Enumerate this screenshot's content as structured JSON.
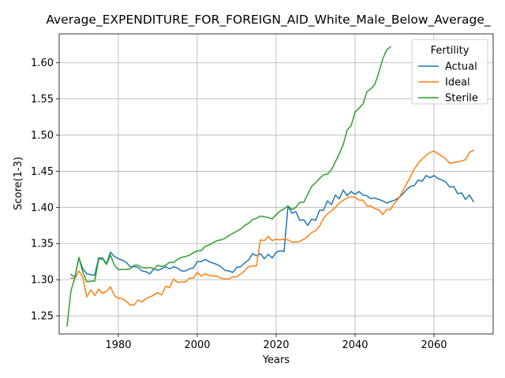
{
  "chart_data": {
    "type": "line",
    "title": "Average_EXPENDITURE_FOR_FOREIGN_AID_White_Male_Below_Average_",
    "xlabel": "Years",
    "ylabel": "Score(1-3)",
    "xlim": [
      1965,
      2075
    ],
    "ylim": [
      1.225,
      1.64
    ],
    "xticks": [
      1980,
      2000,
      2020,
      2040,
      2060
    ],
    "yticks": [
      1.25,
      1.3,
      1.35,
      1.4,
      1.45,
      1.5,
      1.55,
      1.6
    ],
    "ytick_labels": [
      "1.25",
      "1.30",
      "1.35",
      "1.40",
      "1.45",
      "1.50",
      "1.55",
      "1.60"
    ],
    "grid": true,
    "legend": {
      "title": "Fertility",
      "position": "top-right"
    },
    "series": [
      {
        "name": "Actual",
        "color": "#1f77b4",
        "x": [
          1968,
          1969,
          1970,
          1971,
          1972,
          1973,
          1974,
          1975,
          1976,
          1977,
          1978,
          1979,
          1980,
          1981,
          1982,
          1983,
          1984,
          1985,
          1986,
          1987,
          1988,
          1989,
          1990,
          1991,
          1992,
          1993,
          1994,
          1995,
          1996,
          1997,
          1998,
          1999,
          2000,
          2001,
          2002,
          2003,
          2004,
          2005,
          2006,
          2007,
          2008,
          2009,
          2010,
          2011,
          2012,
          2013,
          2014,
          2015,
          2016,
          2017,
          2018,
          2019,
          2020,
          2021,
          2022,
          2023,
          2024,
          2025,
          2026,
          2027,
          2028,
          2029,
          2030,
          2031,
          2032,
          2033,
          2034,
          2035,
          2036,
          2037,
          2038,
          2039,
          2040,
          2041,
          2042,
          2043,
          2044,
          2045,
          2046,
          2047,
          2048,
          2049,
          2050,
          2051,
          2052,
          2053,
          2054,
          2055,
          2056,
          2057,
          2058,
          2059,
          2060,
          2061,
          2062,
          2063,
          2064,
          2065,
          2066,
          2067,
          2068,
          2069,
          2070
        ],
        "values": [
          1.307,
          1.304,
          1.33,
          1.315,
          1.308,
          1.307,
          1.306,
          1.33,
          1.33,
          1.322,
          1.338,
          1.332,
          1.329,
          1.327,
          1.324,
          1.318,
          1.318,
          1.317,
          1.312,
          1.311,
          1.308,
          1.315,
          1.313,
          1.315,
          1.318,
          1.315,
          1.318,
          1.316,
          1.312,
          1.312,
          1.315,
          1.316,
          1.325,
          1.325,
          1.328,
          1.325,
          1.323,
          1.321,
          1.318,
          1.313,
          1.312,
          1.31,
          1.317,
          1.318,
          1.323,
          1.327,
          1.336,
          1.333,
          1.336,
          1.329,
          1.335,
          1.33,
          1.338,
          1.34,
          1.339,
          1.402,
          1.392,
          1.394,
          1.382,
          1.383,
          1.375,
          1.384,
          1.382,
          1.396,
          1.396,
          1.409,
          1.404,
          1.417,
          1.412,
          1.424,
          1.416,
          1.422,
          1.418,
          1.422,
          1.417,
          1.416,
          1.412,
          1.413,
          1.411,
          1.409,
          1.406,
          1.408,
          1.41,
          1.413,
          1.418,
          1.424,
          1.429,
          1.43,
          1.438,
          1.436,
          1.444,
          1.441,
          1.444,
          1.44,
          1.438,
          1.435,
          1.428,
          1.429,
          1.419,
          1.42,
          1.411,
          1.417,
          1.408
        ]
      },
      {
        "name": "Ideal",
        "color": "#ff7f0e",
        "x": [
          1968,
          1969,
          1970,
          1971,
          1972,
          1973,
          1974,
          1975,
          1976,
          1977,
          1978,
          1979,
          1980,
          1981,
          1982,
          1983,
          1984,
          1985,
          1986,
          1987,
          1988,
          1989,
          1990,
          1991,
          1992,
          1993,
          1994,
          1995,
          1996,
          1997,
          1998,
          1999,
          2000,
          2001,
          2002,
          2003,
          2004,
          2005,
          2006,
          2007,
          2008,
          2009,
          2010,
          2011,
          2012,
          2013,
          2014,
          2015,
          2016,
          2017,
          2018,
          2019,
          2020,
          2021,
          2022,
          2023,
          2024,
          2025,
          2026,
          2027,
          2028,
          2029,
          2030,
          2031,
          2032,
          2033,
          2034,
          2035,
          2036,
          2037,
          2038,
          2039,
          2040,
          2041,
          2042,
          2043,
          2044,
          2045,
          2046,
          2047,
          2048,
          2049,
          2050,
          2051,
          2052,
          2053,
          2054,
          2055,
          2056,
          2057,
          2058,
          2059,
          2060,
          2061,
          2062,
          2063,
          2064,
          2065,
          2066,
          2067,
          2068,
          2069,
          2070
        ],
        "values": [
          1.302,
          1.302,
          1.312,
          1.303,
          1.276,
          1.286,
          1.278,
          1.287,
          1.281,
          1.284,
          1.29,
          1.278,
          1.274,
          1.274,
          1.27,
          1.265,
          1.265,
          1.272,
          1.269,
          1.274,
          1.276,
          1.279,
          1.282,
          1.279,
          1.291,
          1.289,
          1.301,
          1.296,
          1.297,
          1.297,
          1.302,
          1.302,
          1.31,
          1.305,
          1.308,
          1.306,
          1.305,
          1.305,
          1.302,
          1.301,
          1.301,
          1.304,
          1.304,
          1.308,
          1.312,
          1.318,
          1.319,
          1.319,
          1.355,
          1.354,
          1.36,
          1.354,
          1.356,
          1.355,
          1.356,
          1.355,
          1.352,
          1.352,
          1.353,
          1.356,
          1.36,
          1.365,
          1.368,
          1.374,
          1.385,
          1.391,
          1.395,
          1.4,
          1.406,
          1.41,
          1.413,
          1.415,
          1.414,
          1.41,
          1.41,
          1.402,
          1.402,
          1.398,
          1.397,
          1.39,
          1.397,
          1.397,
          1.406,
          1.412,
          1.422,
          1.432,
          1.442,
          1.453,
          1.461,
          1.467,
          1.472,
          1.476,
          1.478,
          1.474,
          1.471,
          1.467,
          1.461,
          1.462,
          1.463,
          1.464,
          1.466,
          1.476,
          1.479
        ]
      },
      {
        "name": "Sterile",
        "color": "#2ca02c",
        "x": [
          1967,
          1968,
          1969,
          1970,
          1971,
          1972,
          1973,
          1974,
          1975,
          1976,
          1977,
          1978,
          1979,
          1980,
          1981,
          1982,
          1983,
          1984,
          1985,
          1986,
          1987,
          1988,
          1989,
          1990,
          1991,
          1992,
          1993,
          1994,
          1995,
          1996,
          1997,
          1998,
          1999,
          2000,
          2001,
          2002,
          2003,
          2004,
          2005,
          2006,
          2007,
          2008,
          2009,
          2010,
          2011,
          2012,
          2013,
          2014,
          2015,
          2016,
          2017,
          2018,
          2019,
          2020,
          2021,
          2022,
          2023,
          2024,
          2025,
          2026,
          2027,
          2028,
          2029,
          2030,
          2031,
          2032,
          2033,
          2034,
          2035,
          2036,
          2037,
          2038,
          2039,
          2040,
          2041,
          2042,
          2043,
          2044,
          2045,
          2046,
          2047,
          2048,
          2049
        ],
        "values": [
          1.236,
          1.285,
          1.303,
          1.331,
          1.31,
          1.297,
          1.298,
          1.298,
          1.328,
          1.329,
          1.321,
          1.334,
          1.32,
          1.314,
          1.314,
          1.314,
          1.315,
          1.32,
          1.32,
          1.317,
          1.316,
          1.317,
          1.315,
          1.32,
          1.318,
          1.32,
          1.324,
          1.324,
          1.328,
          1.331,
          1.332,
          1.334,
          1.337,
          1.34,
          1.34,
          1.346,
          1.348,
          1.351,
          1.354,
          1.355,
          1.357,
          1.361,
          1.364,
          1.367,
          1.37,
          1.375,
          1.378,
          1.383,
          1.385,
          1.388,
          1.387,
          1.386,
          1.384,
          1.39,
          1.395,
          1.398,
          1.402,
          1.397,
          1.4,
          1.407,
          1.407,
          1.418,
          1.429,
          1.434,
          1.44,
          1.445,
          1.446,
          1.452,
          1.463,
          1.474,
          1.487,
          1.507,
          1.513,
          1.532,
          1.537,
          1.543,
          1.56,
          1.564,
          1.57,
          1.586,
          1.605,
          1.618,
          1.622
        ]
      }
    ]
  }
}
